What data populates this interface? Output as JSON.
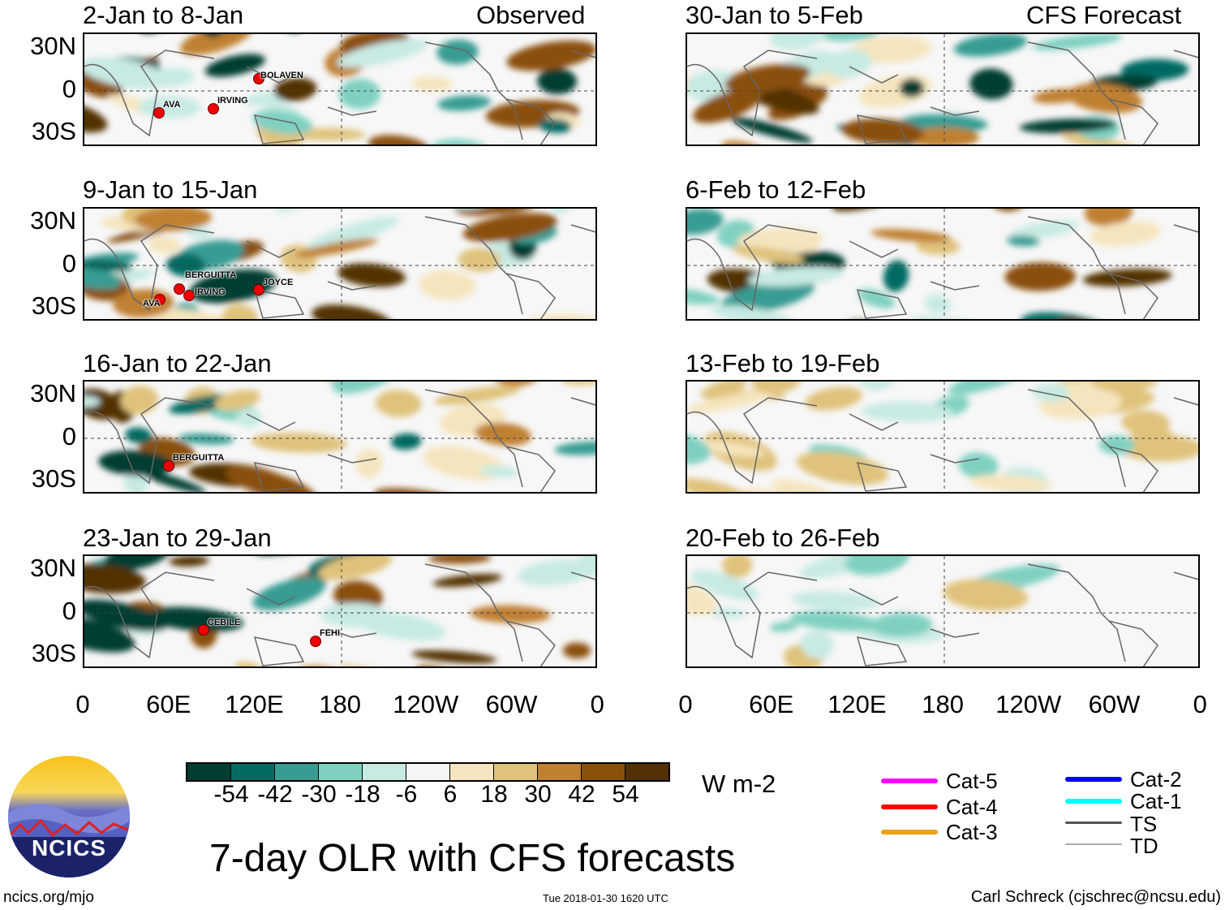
{
  "header": {
    "observed_label": "Observed",
    "forecast_label": "CFS Forecast"
  },
  "panels_left": [
    {
      "title": "2-Jan to 8-Jan",
      "storms": [
        "BOLAVEN",
        "AVA",
        "IRVING"
      ]
    },
    {
      "title": "9-Jan to 15-Jan",
      "storms": [
        "BERGUITTA",
        "IRVING",
        "AVA",
        "JOYCE"
      ]
    },
    {
      "title": "16-Jan to 22-Jan",
      "storms": [
        "BERGUITTA"
      ]
    },
    {
      "title": "23-Jan to 29-Jan",
      "storms": [
        "CEBILE",
        "FEHI"
      ]
    }
  ],
  "panels_right": [
    {
      "title": "30-Jan to 5-Feb"
    },
    {
      "title": "6-Feb to 12-Feb"
    },
    {
      "title": "13-Feb to 19-Feb"
    },
    {
      "title": "20-Feb to 26-Feb"
    }
  ],
  "y_ticks": [
    "30N",
    "0",
    "30S"
  ],
  "x_ticks": [
    "0",
    "60E",
    "120E",
    "180",
    "120W",
    "60W",
    "0"
  ],
  "colorbar": {
    "colors": [
      "#023d33",
      "#056b62",
      "#389c93",
      "#80d0c2",
      "#c7eae3",
      "#f5f5f5",
      "#f5e5be",
      "#e0c27c",
      "#bf8030",
      "#8b500b",
      "#533005"
    ],
    "ticks": [
      "-54",
      "-42",
      "-30",
      "-18",
      "-6",
      "6",
      "18",
      "30",
      "42",
      "54"
    ],
    "units": "W m-2"
  },
  "legend": [
    {
      "label": "Cat-5",
      "color": "#ff00ff"
    },
    {
      "label": "Cat-4",
      "color": "#ff0000"
    },
    {
      "label": "Cat-3",
      "color": "#e8a316"
    },
    {
      "label": "Cat-2",
      "color": "#0000ff"
    },
    {
      "label": "Cat-1",
      "color": "#00ffff"
    },
    {
      "label": "TS",
      "color": "#555555"
    },
    {
      "label": "TD",
      "color": "#aaaaaa"
    }
  ],
  "logo_text": "NCICS",
  "main_title": "7-day OLR with CFS forecasts",
  "footer": {
    "site": "ncics.org/mjo",
    "timestamp": "Tue 2018-01-30 1620 UTC",
    "credit": "Carl Schreck (cjschrec@ncsu.edu)"
  }
}
